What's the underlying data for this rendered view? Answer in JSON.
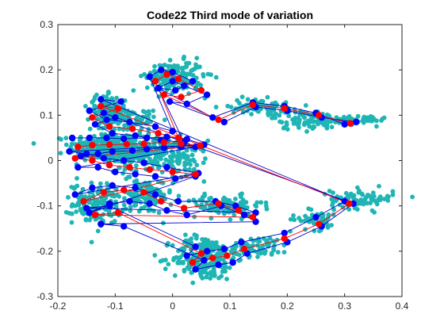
{
  "chart_data": {
    "type": "scatter",
    "title": "Code22 Third mode of variation",
    "xlabel": "",
    "ylabel": "",
    "xlim": [
      -0.2,
      0.4
    ],
    "ylim": [
      -0.3,
      0.3
    ],
    "xticks": [
      -0.2,
      -0.1,
      0,
      0.1,
      0.2,
      0.3,
      0.4
    ],
    "yticks": [
      -0.3,
      -0.2,
      -0.1,
      0,
      0.1,
      0.2,
      0.3
    ],
    "xtick_labels": [
      "-0.2",
      "-0.1",
      "0",
      "0.1",
      "0.2",
      "0.3",
      "0.4"
    ],
    "ytick_labels": [
      "-0.3",
      "-0.2",
      "-0.1",
      "0",
      "0.1",
      "0.2",
      "0.3"
    ],
    "grid": false,
    "colors": {
      "samples": "#1fb5b5",
      "mean": "#ff0000",
      "mode_plus": "#0000ff",
      "mode_minus": "#0000ff",
      "mean_line": "#ff0000",
      "mode_line": "#0000cc"
    },
    "series": [
      {
        "role": "mean",
        "points": [
          [
            -0.165,
            0.03
          ],
          [
            -0.14,
            0.034
          ],
          [
            -0.11,
            0.035
          ],
          [
            -0.08,
            0.036
          ],
          [
            -0.05,
            0.037
          ],
          [
            -0.015,
            0.04
          ],
          [
            0.015,
            0.037
          ],
          [
            0.048,
            0.033
          ],
          [
            -0.17,
            0.005
          ],
          [
            -0.14,
            0.0
          ],
          [
            -0.11,
            -0.01
          ],
          [
            -0.075,
            -0.015
          ],
          [
            -0.04,
            -0.02
          ],
          [
            0.0,
            -0.025
          ],
          [
            0.04,
            -0.03
          ],
          [
            -0.155,
            -0.09
          ],
          [
            -0.12,
            -0.07
          ],
          [
            -0.085,
            -0.065
          ],
          [
            -0.05,
            -0.07
          ],
          [
            -0.02,
            -0.09
          ],
          [
            0.02,
            -0.105
          ],
          [
            0.08,
            -0.095
          ],
          [
            0.115,
            -0.11
          ],
          [
            0.14,
            -0.125
          ],
          [
            -0.135,
            -0.12
          ],
          [
            -0.095,
            -0.115
          ],
          [
            0.05,
            -0.205
          ],
          [
            0.035,
            -0.225
          ],
          [
            0.07,
            -0.215
          ],
          [
            0.095,
            -0.21
          ],
          [
            0.125,
            -0.195
          ],
          [
            0.195,
            -0.172
          ],
          [
            0.255,
            -0.14
          ],
          [
            0.308,
            -0.095
          ],
          [
            -0.125,
            0.12
          ],
          [
            -0.095,
            0.115
          ],
          [
            -0.14,
            0.095
          ],
          [
            -0.11,
            0.075
          ],
          [
            -0.07,
            0.07
          ],
          [
            -0.025,
            0.06
          ],
          [
            0.01,
            0.05
          ],
          [
            -0.03,
            0.175
          ],
          [
            -0.01,
            0.19
          ],
          [
            0.01,
            0.18
          ],
          [
            0.05,
            0.155
          ],
          [
            0.015,
            0.14
          ],
          [
            -0.015,
            0.145
          ],
          [
            0.08,
            0.09
          ],
          [
            0.14,
            0.123
          ],
          [
            0.195,
            0.115
          ],
          [
            0.255,
            0.1
          ],
          [
            0.31,
            0.082
          ]
        ]
      },
      {
        "role": "mode_plus",
        "points": [
          [
            -0.175,
            0.05
          ],
          [
            -0.145,
            0.05
          ],
          [
            -0.115,
            0.05
          ],
          [
            -0.085,
            0.048
          ],
          [
            -0.045,
            0.05
          ],
          [
            -0.01,
            0.052
          ],
          [
            0.025,
            0.047
          ],
          [
            0.055,
            0.035
          ],
          [
            -0.18,
            0.02
          ],
          [
            -0.15,
            0.015
          ],
          [
            -0.12,
            0.005
          ],
          [
            -0.085,
            0.0
          ],
          [
            -0.05,
            -0.005
          ],
          [
            -0.01,
            -0.015
          ],
          [
            0.045,
            -0.028
          ],
          [
            -0.17,
            -0.075
          ],
          [
            -0.14,
            -0.06
          ],
          [
            -0.105,
            -0.055
          ],
          [
            -0.065,
            -0.06
          ],
          [
            -0.03,
            -0.075
          ],
          [
            0.01,
            -0.09
          ],
          [
            0.075,
            -0.09
          ],
          [
            0.11,
            -0.1
          ],
          [
            0.145,
            -0.115
          ],
          [
            -0.15,
            -0.105
          ],
          [
            -0.11,
            -0.1
          ],
          [
            0.04,
            -0.19
          ],
          [
            0.025,
            -0.21
          ],
          [
            0.06,
            -0.2
          ],
          [
            0.09,
            -0.195
          ],
          [
            0.12,
            -0.18
          ],
          [
            0.195,
            -0.16
          ],
          [
            0.25,
            -0.125
          ],
          [
            0.3,
            -0.09
          ],
          [
            -0.125,
            0.135
          ],
          [
            -0.09,
            0.13
          ],
          [
            -0.145,
            0.11
          ],
          [
            -0.115,
            0.09
          ],
          [
            -0.075,
            0.085
          ],
          [
            -0.03,
            0.075
          ],
          [
            0.0,
            0.065
          ],
          [
            -0.04,
            0.185
          ],
          [
            -0.02,
            0.2
          ],
          [
            0.0,
            0.195
          ],
          [
            0.035,
            0.175
          ],
          [
            0.005,
            0.155
          ],
          [
            -0.025,
            0.16
          ],
          [
            0.07,
            0.095
          ],
          [
            0.14,
            0.128
          ],
          [
            0.195,
            0.12
          ],
          [
            0.25,
            0.105
          ],
          [
            0.3,
            0.08
          ]
        ]
      },
      {
        "role": "mode_minus",
        "points": [
          [
            -0.16,
            0.01
          ],
          [
            -0.13,
            0.015
          ],
          [
            -0.105,
            0.02
          ],
          [
            -0.07,
            0.022
          ],
          [
            -0.045,
            0.025
          ],
          [
            -0.015,
            0.028
          ],
          [
            0.015,
            0.03
          ],
          [
            0.04,
            0.03
          ],
          [
            -0.165,
            -0.015
          ],
          [
            -0.13,
            -0.015
          ],
          [
            -0.1,
            -0.025
          ],
          [
            -0.065,
            -0.03
          ],
          [
            -0.03,
            -0.035
          ],
          [
            0.005,
            -0.04
          ],
          [
            0.04,
            -0.035
          ],
          [
            -0.145,
            -0.115
          ],
          [
            -0.11,
            -0.095
          ],
          [
            -0.075,
            -0.09
          ],
          [
            -0.04,
            -0.095
          ],
          [
            -0.01,
            -0.11
          ],
          [
            0.025,
            -0.12
          ],
          [
            0.085,
            -0.1
          ],
          [
            0.125,
            -0.12
          ],
          [
            0.145,
            -0.135
          ],
          [
            -0.125,
            -0.14
          ],
          [
            -0.085,
            -0.145
          ],
          [
            0.055,
            -0.22
          ],
          [
            0.04,
            -0.24
          ],
          [
            0.08,
            -0.23
          ],
          [
            0.105,
            -0.225
          ],
          [
            0.13,
            -0.205
          ],
          [
            0.2,
            -0.18
          ],
          [
            0.26,
            -0.145
          ],
          [
            0.315,
            -0.095
          ],
          [
            -0.12,
            0.105
          ],
          [
            -0.1,
            0.095
          ],
          [
            -0.135,
            0.08
          ],
          [
            -0.105,
            0.06
          ],
          [
            -0.065,
            0.055
          ],
          [
            -0.02,
            0.045
          ],
          [
            0.02,
            0.04
          ],
          [
            -0.025,
            0.16
          ],
          [
            0.0,
            0.175
          ],
          [
            0.02,
            0.165
          ],
          [
            0.06,
            0.145
          ],
          [
            0.025,
            0.125
          ],
          [
            -0.005,
            0.13
          ],
          [
            0.09,
            0.085
          ],
          [
            0.145,
            0.118
          ],
          [
            0.2,
            0.11
          ],
          [
            0.26,
            0.095
          ],
          [
            0.32,
            0.085
          ]
        ]
      }
    ],
    "sample_clusters": [
      {
        "cx": -0.12,
        "cy": 0.03,
        "rx": 0.055,
        "ry": 0.03,
        "n": 260
      },
      {
        "cx": -0.05,
        "cy": 0.015,
        "rx": 0.06,
        "ry": 0.04,
        "n": 180
      },
      {
        "cx": 0.02,
        "cy": 0.0,
        "rx": 0.035,
        "ry": 0.04,
        "n": 70
      },
      {
        "cx": -0.13,
        "cy": -0.095,
        "rx": 0.04,
        "ry": 0.04,
        "n": 150
      },
      {
        "cx": -0.05,
        "cy": -0.08,
        "rx": 0.045,
        "ry": 0.035,
        "n": 110
      },
      {
        "cx": 0.09,
        "cy": -0.1,
        "rx": 0.06,
        "ry": 0.02,
        "n": 110
      },
      {
        "cx": 0.055,
        "cy": -0.215,
        "rx": 0.05,
        "ry": 0.045,
        "n": 220
      },
      {
        "cx": 0.15,
        "cy": -0.19,
        "rx": 0.05,
        "ry": 0.02,
        "n": 70
      },
      {
        "cx": 0.25,
        "cy": -0.13,
        "rx": 0.04,
        "ry": 0.02,
        "n": 50
      },
      {
        "cx": 0.33,
        "cy": -0.085,
        "rx": 0.05,
        "ry": 0.02,
        "n": 80
      },
      {
        "cx": -0.115,
        "cy": 0.11,
        "rx": 0.03,
        "ry": 0.03,
        "n": 120
      },
      {
        "cx": 0.005,
        "cy": 0.185,
        "rx": 0.045,
        "ry": 0.03,
        "n": 180
      },
      {
        "cx": -0.07,
        "cy": 0.09,
        "rx": 0.04,
        "ry": 0.02,
        "n": 70
      },
      {
        "cx": 0.15,
        "cy": 0.12,
        "rx": 0.045,
        "ry": 0.015,
        "n": 80
      },
      {
        "cx": 0.23,
        "cy": 0.09,
        "rx": 0.05,
        "ry": 0.02,
        "n": 80
      },
      {
        "cx": 0.32,
        "cy": 0.09,
        "rx": 0.05,
        "ry": 0.01,
        "n": 60
      }
    ]
  }
}
